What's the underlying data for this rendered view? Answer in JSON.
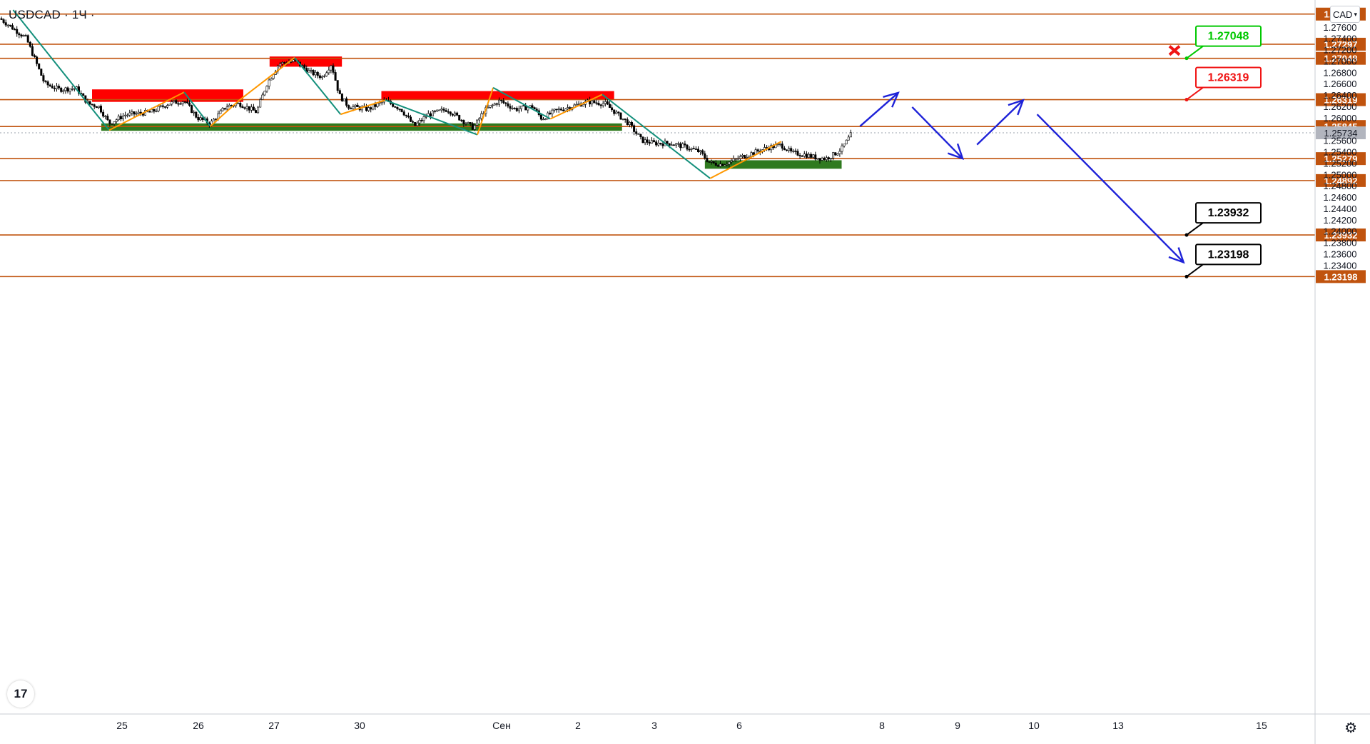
{
  "header": {
    "symbol": "USDCAD",
    "separator": "·",
    "interval": "1Ч",
    "currency": "CAD"
  },
  "icons": {
    "logo": "tradingview-logo-icon",
    "settings": "gear-icon",
    "cancel_mark": "x-mark-icon"
  },
  "chart_data": {
    "type": "candlestick",
    "symbol": "USDCAD",
    "interval": "1Ч",
    "ylim": [
      1.2293,
      1.2805
    ],
    "y_ticks": [
      "1.27600",
      "1.27400",
      "1.27200",
      "1.27000",
      "1.26800",
      "1.26600",
      "1.26400",
      "1.26200",
      "1.26000",
      "1.25600",
      "1.25400",
      "1.25200",
      "1.25000",
      "1.24800",
      "1.24600",
      "1.24400",
      "1.24200",
      "1.24000",
      "1.23800",
      "1.23600",
      "1.23400"
    ],
    "x_ticks": [
      "25",
      "26",
      "27",
      "30",
      "Сен",
      "2",
      "3",
      "6",
      "8",
      "9",
      "10",
      "13",
      "15"
    ],
    "levels": [
      {
        "label": "1.27828",
        "value": 1.27828
      },
      {
        "label": "1.27297",
        "value": 1.27297
      },
      {
        "label": "1.27048",
        "value": 1.27048
      },
      {
        "label": "1.26319",
        "value": 1.26319
      },
      {
        "label": "1.25845",
        "value": 1.25845
      },
      {
        "label": "1.25279",
        "value": 1.25279
      },
      {
        "label": "1.24892",
        "value": 1.24892
      },
      {
        "label": "1.23932",
        "value": 1.23932
      },
      {
        "label": "1.23198",
        "value": 1.23198
      }
    ],
    "current_price": {
      "label": "1.25734",
      "value": 1.25734
    },
    "target_labels": [
      {
        "label": "1.27048",
        "value": 1.27048,
        "color": "#00c800",
        "status": "cancelled"
      },
      {
        "label": "1.26319",
        "value": 1.26319,
        "color": "#f01414"
      },
      {
        "label": "1.23932",
        "value": 1.23932,
        "color": "#000000"
      },
      {
        "label": "1.23198",
        "value": 1.23198,
        "color": "#000000"
      }
    ],
    "zones": [
      {
        "type": "resistance",
        "color": "#ff0000",
        "x": [
          0.07,
          0.185
        ],
        "y": [
          1.2628,
          1.265
        ]
      },
      {
        "type": "resistance",
        "color": "#ff0000",
        "x": [
          0.205,
          0.26
        ],
        "y": [
          1.269,
          1.2708
        ]
      },
      {
        "type": "resistance",
        "color": "#ff0000",
        "x": [
          0.29,
          0.467
        ],
        "y": [
          1.2632,
          1.2647
        ]
      },
      {
        "type": "support",
        "color": "#2f7a1f",
        "x": [
          0.077,
          0.473
        ],
        "y": [
          1.2577,
          1.259
        ]
      },
      {
        "type": "support",
        "color": "#2f7a1f",
        "x": [
          0.536,
          0.64
        ],
        "y": [
          1.251,
          1.2525
        ]
      }
    ],
    "zigzag_bear": [
      [
        0.01,
        1.279
      ],
      [
        0.083,
        1.2578
      ],
      [
        0.14,
        1.2645
      ],
      [
        0.16,
        1.2585
      ],
      [
        0.182,
        1.2631
      ],
      [
        0.224,
        1.2706
      ],
      [
        0.259,
        1.2606
      ],
      [
        0.293,
        1.2631
      ],
      [
        0.363,
        1.257
      ],
      [
        0.375,
        1.2653
      ],
      [
        0.4185,
        1.2598
      ],
      [
        0.458,
        1.2641
      ],
      [
        0.54,
        1.2493
      ]
    ],
    "zigzag_bull": [
      [
        0.083,
        1.2578
      ],
      [
        0.14,
        1.2645
      ],
      [
        0.16,
        1.2585
      ],
      [
        0.182,
        1.2631
      ],
      [
        0.224,
        1.2706
      ],
      [
        0.259,
        1.2606
      ],
      [
        0.293,
        1.2631
      ],
      [
        0.363,
        1.257
      ],
      [
        0.375,
        1.2653
      ],
      [
        0.4185,
        1.2598
      ],
      [
        0.458,
        1.2641
      ],
      [
        0.54,
        1.2493
      ],
      [
        0.594,
        1.2558
      ]
    ],
    "forecast_path": [
      [
        0.654,
        1.2585
      ],
      [
        0.683,
        1.2644
      ],
      [
        0.732,
        1.2528
      ],
      [
        0.778,
        1.2631
      ],
      [
        0.9,
        1.2345
      ]
    ],
    "candles_anchor": [
      [
        0.0,
        1.2775
      ],
      [
        0.02,
        1.274
      ],
      [
        0.027,
        1.27
      ],
      [
        0.034,
        1.266
      ],
      [
        0.045,
        1.265
      ],
      [
        0.058,
        1.2652
      ],
      [
        0.067,
        1.2625
      ],
      [
        0.075,
        1.262
      ],
      [
        0.083,
        1.259
      ],
      [
        0.095,
        1.2605
      ],
      [
        0.115,
        1.261
      ],
      [
        0.128,
        1.2625
      ],
      [
        0.14,
        1.263
      ],
      [
        0.15,
        1.26
      ],
      [
        0.16,
        1.259
      ],
      [
        0.172,
        1.262
      ],
      [
        0.182,
        1.2625
      ],
      [
        0.195,
        1.261
      ],
      [
        0.203,
        1.266
      ],
      [
        0.212,
        1.2695
      ],
      [
        0.224,
        1.27
      ],
      [
        0.236,
        1.268
      ],
      [
        0.245,
        1.2672
      ],
      [
        0.252,
        1.2695
      ],
      [
        0.258,
        1.264
      ],
      [
        0.265,
        1.262
      ],
      [
        0.28,
        1.2615
      ],
      [
        0.293,
        1.263
      ],
      [
        0.305,
        1.2615
      ],
      [
        0.315,
        1.2585
      ],
      [
        0.325,
        1.2605
      ],
      [
        0.34,
        1.2615
      ],
      [
        0.35,
        1.2598
      ],
      [
        0.36,
        1.2582
      ],
      [
        0.368,
        1.2612
      ],
      [
        0.38,
        1.263
      ],
      [
        0.392,
        1.2615
      ],
      [
        0.405,
        1.262
      ],
      [
        0.412,
        1.2598
      ],
      [
        0.422,
        1.2612
      ],
      [
        0.435,
        1.262
      ],
      [
        0.447,
        1.2628
      ],
      [
        0.46,
        1.2625
      ],
      [
        0.47,
        1.2605
      ],
      [
        0.478,
        1.259
      ],
      [
        0.488,
        1.256
      ],
      [
        0.498,
        1.2555
      ],
      [
        0.51,
        1.2555
      ],
      [
        0.522,
        1.2548
      ],
      [
        0.532,
        1.254
      ],
      [
        0.54,
        1.252
      ],
      [
        0.548,
        1.2518
      ],
      [
        0.555,
        1.2522
      ],
      [
        0.565,
        1.2532
      ],
      [
        0.575,
        1.254
      ],
      [
        0.585,
        1.2548
      ],
      [
        0.594,
        1.2552
      ],
      [
        0.602,
        1.2538
      ],
      [
        0.612,
        1.2535
      ],
      [
        0.62,
        1.253
      ],
      [
        0.628,
        1.2528
      ],
      [
        0.634,
        1.2535
      ],
      [
        0.64,
        1.2545
      ],
      [
        0.648,
        1.2573
      ]
    ]
  }
}
